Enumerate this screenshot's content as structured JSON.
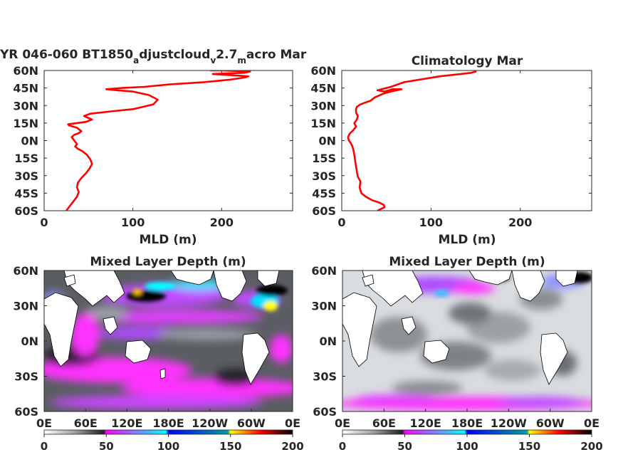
{
  "chart_data": [
    {
      "type": "line",
      "title_main": "YR 046-060 BT1850",
      "title_sub1": "a",
      "title_mid1": "djustcloud",
      "title_sub2": "v",
      "title_mid2": "2.7",
      "title_sub3": "m",
      "title_mid3": "acro Mar",
      "xlabel": "MLD (m)",
      "xlim": [
        0,
        280
      ],
      "ylim": [
        -60,
        60
      ],
      "xticks": [
        "0",
        "100",
        "200"
      ],
      "yticks": [
        "60N",
        "45N",
        "30N",
        "15N",
        "0N",
        "15S",
        "30S",
        "45S",
        "60S"
      ],
      "series": [
        {
          "color": "#ff0000",
          "x": [
            25,
            29,
            33,
            37,
            39,
            37,
            38,
            42,
            47,
            51,
            54,
            52,
            48,
            43,
            38,
            35,
            37,
            34,
            31,
            34,
            38,
            42,
            37,
            28,
            27,
            37,
            47,
            54,
            48,
            45,
            52,
            75,
            101,
            112,
            123,
            128,
            118,
            100,
            83,
            70,
            88,
            113,
            140,
            180,
            208,
            226,
            230,
            210,
            190,
            225,
            232,
            200,
            187
          ],
          "y": [
            -60,
            -56,
            -52,
            -48,
            -44,
            -40,
            -36,
            -32,
            -28,
            -24,
            -20,
            -16,
            -12,
            -9,
            -7,
            -5,
            -3,
            0,
            3,
            5,
            6,
            8,
            11,
            13,
            14,
            15,
            16,
            18,
            20,
            21,
            23,
            25,
            27,
            29,
            31,
            35,
            39,
            42,
            43,
            44,
            45,
            46,
            48,
            50,
            52,
            54,
            55,
            56,
            57,
            58,
            59,
            60,
            60
          ]
        }
      ]
    },
    {
      "type": "line",
      "title": "Climatology Mar",
      "xlabel": "MLD (m)",
      "xlim": [
        0,
        280
      ],
      "ylim": [
        -60,
        60
      ],
      "xticks": [
        "0",
        "100",
        "200"
      ],
      "yticks": [
        "60N",
        "45N",
        "30N",
        "15N",
        "0N",
        "15S",
        "30S",
        "45S",
        "60S"
      ],
      "series": [
        {
          "color": "#ff0000",
          "x": [
            40,
            48,
            47,
            42,
            34,
            27,
            22,
            20,
            21,
            18,
            17,
            16,
            15,
            14,
            13,
            12,
            10,
            8,
            7,
            9,
            13,
            16,
            14,
            17,
            18,
            16,
            16,
            17,
            21,
            28,
            32,
            37,
            46,
            55,
            67,
            57,
            48,
            40,
            55,
            70,
            110,
            145,
            150,
            148
          ],
          "y": [
            -60,
            -57,
            -55,
            -53,
            -51,
            -48,
            -45,
            -40,
            -35,
            -31,
            -27,
            -22,
            -17,
            -12,
            -8,
            -5,
            -2,
            0,
            3,
            6,
            9,
            12,
            15,
            18,
            21,
            24,
            27,
            29,
            31,
            33,
            34,
            37,
            40,
            42,
            44,
            44,
            42,
            43,
            46,
            50,
            55,
            58,
            59,
            60
          ]
        }
      ]
    },
    {
      "type": "heatmap",
      "title": "Mixed Layer Depth (m)",
      "xticks": [
        "0E",
        "60E",
        "120E",
        "180E",
        "120W",
        "60W",
        "0E"
      ],
      "yticks": [
        "60N",
        "30N",
        "0N",
        "30S",
        "60S"
      ],
      "colorbar": {
        "ticks": [
          "0",
          "50",
          "100",
          "150",
          "200"
        ],
        "range": [
          0,
          200
        ],
        "colors": [
          "#ffffff",
          "#9aa0a6",
          "#202020",
          "#ff00ff",
          "#8080ff",
          "#00ffff",
          "#0000ff",
          "#00a0a0",
          "#ffff00",
          "#ff0000",
          "#000000"
        ]
      }
    },
    {
      "type": "heatmap",
      "title": "Mixed Layer Depth (m)",
      "xticks": [
        "0E",
        "60E",
        "120E",
        "180E",
        "120W",
        "60W",
        "0E"
      ],
      "yticks": [
        "60N",
        "30N",
        "0N",
        "30S",
        "60S"
      ],
      "colorbar": {
        "ticks": [
          "0",
          "50",
          "100",
          "150",
          "200"
        ],
        "range": [
          0,
          200
        ],
        "colors": [
          "#ffffff",
          "#9aa0a6",
          "#202020",
          "#ff00ff",
          "#8080ff",
          "#00ffff",
          "#0000ff",
          "#00a0a0",
          "#ffff00",
          "#ff0000",
          "#000000"
        ]
      }
    }
  ]
}
